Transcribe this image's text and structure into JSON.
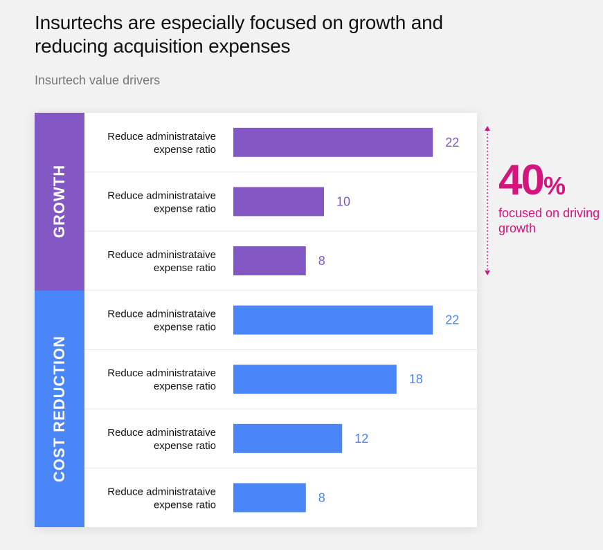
{
  "title": "Insurtechs are especially focused on growth and reducing acquisition expenses",
  "subtitle": "Insurtech value drivers",
  "colors": {
    "growth": "#8458c4",
    "cost": "#4a86f7",
    "accent": "#d4157e",
    "divider": "#e6e6e6"
  },
  "annotation": {
    "percent_value": "40",
    "percent_sign": "%",
    "caption": "focused on driving growth"
  },
  "chart_data": {
    "type": "bar",
    "orientation": "horizontal",
    "title": "Insurtechs are especially focused on growth and reducing acquisition expenses",
    "subtitle": "Insurtech value drivers",
    "groups": [
      {
        "name": "GROWTH",
        "color": "#8458c4",
        "items": [
          {
            "label": "Reduce administrataive expense ratio",
            "value": 22
          },
          {
            "label": "Reduce administrataive expense ratio",
            "value": 10
          },
          {
            "label": "Reduce administrataive expense ratio",
            "value": 8
          }
        ]
      },
      {
        "name": "COST REDUCTION",
        "color": "#4a86f7",
        "items": [
          {
            "label": "Reduce administrataive expense ratio",
            "value": 22
          },
          {
            "label": "Reduce administrataive expense ratio",
            "value": 18
          },
          {
            "label": "Reduce administrataive expense ratio",
            "value": 12
          },
          {
            "label": "Reduce administrataive expense ratio",
            "value": 8
          }
        ]
      }
    ],
    "xlim": [
      0,
      22
    ],
    "grid": false,
    "legend": "none"
  }
}
